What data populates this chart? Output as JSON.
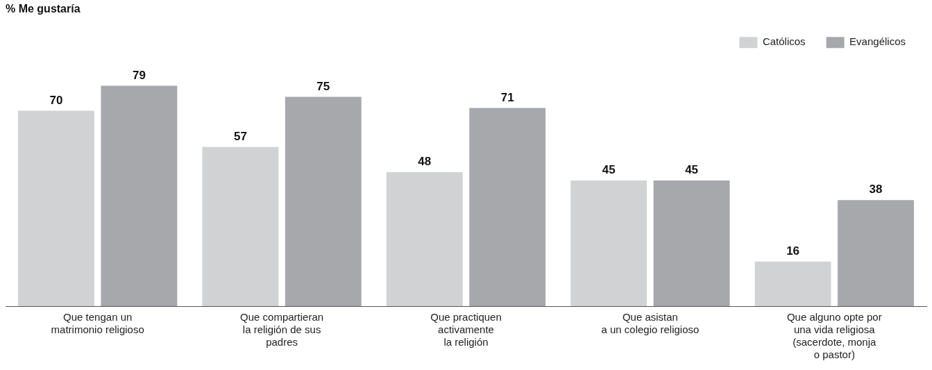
{
  "chart_data": {
    "type": "bar",
    "title": "% Me gustaría",
    "categories": [
      "Que tengan un\nmatrimonio religioso",
      "Que compartieran\nla religión de sus\npadres",
      "Que practiquen\nactivamente\nla religión",
      "Que asistan\na un colegio religioso",
      "Que alguno opte por\nuna vida religiosa\n(sacerdote, monja\no pastor)"
    ],
    "series": [
      {
        "name": "Católicos",
        "color": "#d1d2d4",
        "values": [
          70,
          57,
          48,
          45,
          16
        ]
      },
      {
        "name": "Evangélicos",
        "color": "#a7a8ac",
        "values": [
          79,
          75,
          71,
          45,
          38
        ]
      }
    ],
    "data_labels": true,
    "legend": "top right",
    "grid": false
  }
}
